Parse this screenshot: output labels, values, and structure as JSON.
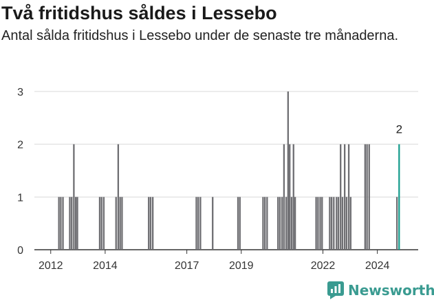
{
  "header": {
    "title": "Två fritidshus såldes i Lessebo",
    "subtitle": "Antal sålda fritidshus i Lessebo under de senaste tre månaderna."
  },
  "brand": {
    "name": "Newsworthy",
    "icon": "newsworthy-logo-icon",
    "color": "#3a9b91"
  },
  "colors": {
    "bar": "#6e6e72",
    "highlight": "#1a9e8f",
    "grid": "#d9d9d9",
    "axis": "#333333"
  },
  "chart_data": {
    "type": "bar",
    "title": "Två fritidshus såldes i Lessebo",
    "subtitle": "Antal sålda fritidshus i Lessebo under de senaste tre månaderna.",
    "xlabel": "",
    "ylabel": "",
    "ylim": [
      0,
      3
    ],
    "yticks": [
      0,
      1,
      2,
      3
    ],
    "xlim": [
      2011.4,
      2025.5
    ],
    "xticks": [
      2012,
      2014,
      2017,
      2019,
      2022,
      2024
    ],
    "grid": true,
    "legend": "none",
    "x": [
      2012.3,
      2012.37,
      2012.45,
      2012.7,
      2012.77,
      2012.85,
      2012.92,
      2012.98,
      2013.8,
      2013.87,
      2013.95,
      2014.4,
      2014.48,
      2014.55,
      2014.62,
      2015.6,
      2015.67,
      2015.75,
      2017.35,
      2017.42,
      2017.5,
      2017.95,
      2018.88,
      2018.95,
      2019.8,
      2019.87,
      2019.95,
      2020.35,
      2020.42,
      2020.5,
      2020.57,
      2020.65,
      2020.72,
      2020.78,
      2020.85,
      2020.92,
      2020.98,
      2021.75,
      2021.82,
      2021.9,
      2021.97,
      2022.25,
      2022.32,
      2022.4,
      2022.5,
      2022.57,
      2022.65,
      2022.72,
      2022.8,
      2022.87,
      2022.95,
      2023.02,
      2023.55,
      2023.62,
      2023.7,
      2024.72,
      2024.8
    ],
    "values": [
      1,
      1,
      1,
      1,
      1,
      2,
      1,
      1,
      1,
      1,
      1,
      1,
      2,
      1,
      1,
      1,
      1,
      1,
      1,
      1,
      1,
      1,
      1,
      1,
      1,
      1,
      1,
      1,
      1,
      1,
      2,
      1,
      3,
      2,
      1,
      2,
      1,
      1,
      1,
      1,
      1,
      1,
      1,
      1,
      1,
      1,
      2,
      1,
      2,
      1,
      2,
      1,
      2,
      2,
      2,
      1,
      2
    ],
    "highlight": {
      "x": 2024.8,
      "value": 2,
      "label": "2"
    }
  }
}
